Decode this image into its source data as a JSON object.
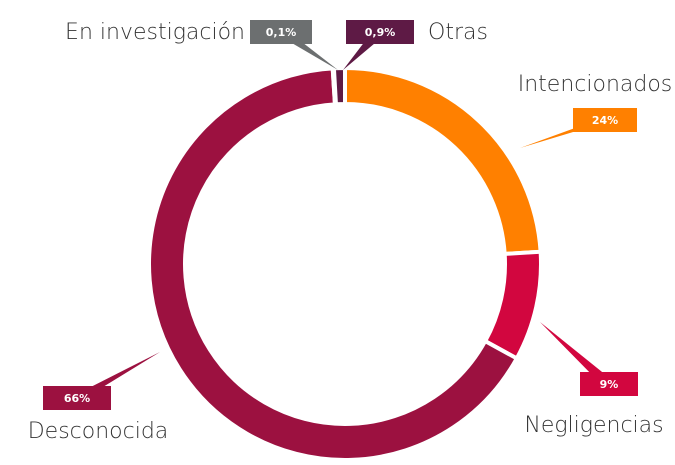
{
  "chart_data": {
    "type": "pie",
    "categories": [
      "Intencionados",
      "Negligencias",
      "Desconocida",
      "En investigación",
      "Otras"
    ],
    "values": [
      24,
      9,
      66,
      0.1,
      0.9
    ],
    "value_labels": [
      "24%",
      "9%",
      "66%",
      "0,1%",
      "0,9%"
    ],
    "colors": [
      "#ff8000",
      "#d2063f",
      "#9c1140",
      "#6c6f70",
      "#5e1a45"
    ]
  }
}
